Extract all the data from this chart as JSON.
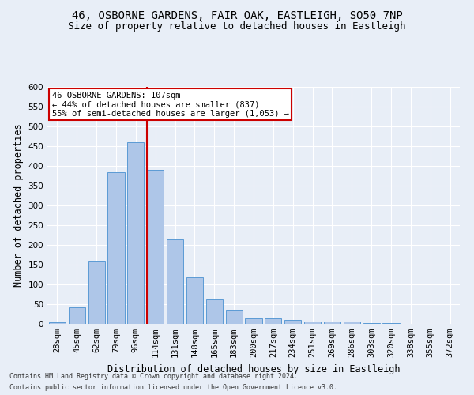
{
  "title_line1": "46, OSBORNE GARDENS, FAIR OAK, EASTLEIGH, SO50 7NP",
  "title_line2": "Size of property relative to detached houses in Eastleigh",
  "xlabel": "Distribution of detached houses by size in Eastleigh",
  "ylabel": "Number of detached properties",
  "footer_line1": "Contains HM Land Registry data © Crown copyright and database right 2024.",
  "footer_line2": "Contains public sector information licensed under the Open Government Licence v3.0.",
  "bin_labels": [
    "28sqm",
    "45sqm",
    "62sqm",
    "79sqm",
    "96sqm",
    "114sqm",
    "131sqm",
    "148sqm",
    "165sqm",
    "183sqm",
    "200sqm",
    "217sqm",
    "234sqm",
    "251sqm",
    "269sqm",
    "286sqm",
    "303sqm",
    "320sqm",
    "338sqm",
    "355sqm",
    "372sqm"
  ],
  "bar_values": [
    5,
    42,
    158,
    385,
    460,
    390,
    215,
    118,
    63,
    35,
    15,
    15,
    10,
    6,
    6,
    7,
    2,
    2,
    1,
    1,
    1
  ],
  "bar_color": "#aec6e8",
  "bar_edge_color": "#5b9bd5",
  "vline_x": 4.575,
  "vline_color": "#cc0000",
  "annotation_text": "46 OSBORNE GARDENS: 107sqm\n← 44% of detached houses are smaller (837)\n55% of semi-detached houses are larger (1,053) →",
  "annotation_box_color": "#ffffff",
  "annotation_box_edge": "#cc0000",
  "ylim": [
    0,
    600
  ],
  "yticks": [
    0,
    50,
    100,
    150,
    200,
    250,
    300,
    350,
    400,
    450,
    500,
    550,
    600
  ],
  "background_color": "#e8eef7",
  "grid_color": "#ffffff",
  "title_fontsize": 10,
  "subtitle_fontsize": 9,
  "axis_label_fontsize": 8.5,
  "tick_fontsize": 7.5,
  "footer_fontsize": 6
}
